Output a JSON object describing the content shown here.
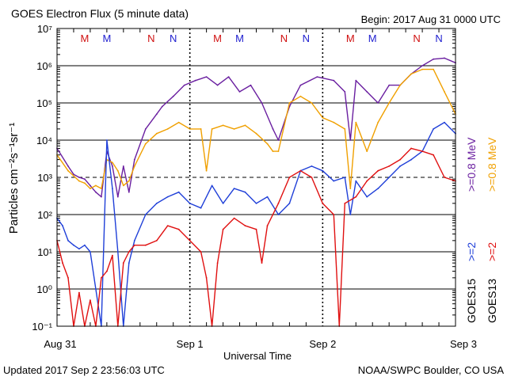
{
  "header": {
    "title": "GOES Electron Flux (5 minute data)",
    "begin": "Begin: 2017 Aug 31 0000 UTC"
  },
  "footer": {
    "updated": "Updated 2017 Sep  2 23:56:03 UTC",
    "credit": "NOAA/SWPC Boulder, CO USA"
  },
  "colors": {
    "goes15_2mev": "#1f3fd8",
    "goes13_2mev": "#e01010",
    "goes15_08mev": "#6a1fa0",
    "goes13_08mev": "#f0a000",
    "m_marker": "#d01010",
    "n_marker": "#2020d0"
  },
  "chart_data": {
    "type": "line",
    "title": "GOES Electron Flux (5 minute data)",
    "xlabel": "Universal Time",
    "ylabel": "Particles cm⁻²s⁻¹sr⁻¹",
    "y_scale": "log",
    "ylim": [
      0.1,
      10000000
    ],
    "y_ticks": [
      "10⁻¹",
      "10⁰",
      "10¹",
      "10²",
      "10³",
      "10⁴",
      "10⁵",
      "10⁶",
      "10⁷"
    ],
    "x_ticks": [
      "Aug 31",
      "Sep 1",
      "Sep 2",
      "Sep 3"
    ],
    "xlim": [
      "2017-08-31 00:00",
      "2017-09-03 00:00"
    ],
    "threshold_line": 1000,
    "marker_labels": [
      {
        "t": "2017-08-31 05:00",
        "label": "M",
        "color": "#d01010"
      },
      {
        "t": "2017-08-31 09:00",
        "label": "M",
        "color": "#2020d0"
      },
      {
        "t": "2017-08-31 17:00",
        "label": "N",
        "color": "#d01010"
      },
      {
        "t": "2017-08-31 21:00",
        "label": "N",
        "color": "#2020d0"
      },
      {
        "t": "2017-09-01 05:00",
        "label": "M",
        "color": "#d01010"
      },
      {
        "t": "2017-09-01 09:00",
        "label": "M",
        "color": "#2020d0"
      },
      {
        "t": "2017-09-01 17:00",
        "label": "N",
        "color": "#d01010"
      },
      {
        "t": "2017-09-01 21:00",
        "label": "N",
        "color": "#2020d0"
      },
      {
        "t": "2017-09-02 05:00",
        "label": "M",
        "color": "#d01010"
      },
      {
        "t": "2017-09-02 09:00",
        "label": "M",
        "color": "#2020d0"
      },
      {
        "t": "2017-09-02 17:00",
        "label": "N",
        "color": "#d01010"
      },
      {
        "t": "2017-09-02 21:00",
        "label": "N",
        "color": "#2020d0"
      }
    ],
    "legend": [
      {
        "satellite": "GOES15",
        "label": ">=2",
        "label2": ">=0.8 MeV",
        "color2mev": "#1f3fd8",
        "color08": "#6a1fa0"
      },
      {
        "satellite": "GOES13",
        "label": ">=2",
        "label2": ">=0.8 MeV",
        "color2mev": "#e01010",
        "color08": "#f0a000"
      }
    ],
    "series": [
      {
        "name": "GOES15 >=0.8 MeV",
        "color": "#6a1fa0",
        "points": [
          [
            "2017-08-31 00:00",
            6000
          ],
          [
            "2017-08-31 02:00",
            2000
          ],
          [
            "2017-08-31 03:00",
            1200
          ],
          [
            "2017-08-31 04:00",
            1000
          ],
          [
            "2017-08-31 05:00",
            900
          ],
          [
            "2017-08-31 06:00",
            600
          ],
          [
            "2017-08-31 07:00",
            400
          ],
          [
            "2017-08-31 08:00",
            300
          ],
          [
            "2017-08-31 09:00",
            5000
          ],
          [
            "2017-08-31 10:00",
            2000
          ],
          [
            "2017-08-31 11:00",
            300
          ],
          [
            "2017-08-31 12:00",
            2000
          ],
          [
            "2017-08-31 13:00",
            400
          ],
          [
            "2017-08-31 14:00",
            3000
          ],
          [
            "2017-08-31 16:00",
            20000
          ],
          [
            "2017-08-31 18:00",
            50000
          ],
          [
            "2017-08-31 19:00",
            80000
          ],
          [
            "2017-08-31 21:00",
            150000
          ],
          [
            "2017-08-31 23:00",
            300000
          ],
          [
            "2017-09-01 01:00",
            400000
          ],
          [
            "2017-09-01 03:00",
            500000
          ],
          [
            "2017-09-01 05:00",
            300000
          ],
          [
            "2017-09-01 07:00",
            500000
          ],
          [
            "2017-09-01 09:00",
            200000
          ],
          [
            "2017-09-01 11:00",
            300000
          ],
          [
            "2017-09-01 13:00",
            100000
          ],
          [
            "2017-09-01 15:00",
            20000
          ],
          [
            "2017-09-01 16:00",
            10000
          ],
          [
            "2017-09-01 18:00",
            80000
          ],
          [
            "2017-09-01 20:00",
            300000
          ],
          [
            "2017-09-01 23:00",
            500000
          ],
          [
            "2017-09-02 02:00",
            400000
          ],
          [
            "2017-09-02 04:00",
            200000
          ],
          [
            "2017-09-02 05:00",
            10000
          ],
          [
            "2017-09-02 06:00",
            400000
          ],
          [
            "2017-09-02 08:00",
            200000
          ],
          [
            "2017-09-02 10:00",
            100000
          ],
          [
            "2017-09-02 12:00",
            300000
          ],
          [
            "2017-09-02 14:00",
            300000
          ],
          [
            "2017-09-02 16:00",
            600000
          ],
          [
            "2017-09-02 18:00",
            1000000
          ],
          [
            "2017-09-02 20:00",
            1500000
          ],
          [
            "2017-09-02 22:00",
            1600000
          ],
          [
            "2017-09-03 00:00",
            1200000
          ]
        ]
      },
      {
        "name": "GOES13 >=0.8 MeV",
        "color": "#f0a000",
        "points": [
          [
            "2017-08-31 00:00",
            4000
          ],
          [
            "2017-08-31 02:00",
            1500
          ],
          [
            "2017-08-31 04:00",
            800
          ],
          [
            "2017-08-31 05:00",
            700
          ],
          [
            "2017-08-31 06:00",
            500
          ],
          [
            "2017-08-31 07:00",
            600
          ],
          [
            "2017-08-31 08:00",
            500
          ],
          [
            "2017-08-31 09:00",
            3000
          ],
          [
            "2017-08-31 10:00",
            2500
          ],
          [
            "2017-08-31 11:00",
            1500
          ],
          [
            "2017-08-31 12:00",
            600
          ],
          [
            "2017-08-31 13:00",
            800
          ],
          [
            "2017-08-31 14:00",
            2000
          ],
          [
            "2017-08-31 16:00",
            8000
          ],
          [
            "2017-08-31 18:00",
            15000
          ],
          [
            "2017-08-31 20:00",
            20000
          ],
          [
            "2017-08-31 22:00",
            30000
          ],
          [
            "2017-09-01 00:00",
            20000
          ],
          [
            "2017-09-01 02:00",
            20000
          ],
          [
            "2017-09-01 03:00",
            1500
          ],
          [
            "2017-09-01 04:00",
            20000
          ],
          [
            "2017-09-01 06:00",
            25000
          ],
          [
            "2017-09-01 08:00",
            20000
          ],
          [
            "2017-09-01 10:00",
            25000
          ],
          [
            "2017-09-01 12:00",
            15000
          ],
          [
            "2017-09-01 14:00",
            8000
          ],
          [
            "2017-09-01 15:00",
            5000
          ],
          [
            "2017-09-01 16:00",
            5000
          ],
          [
            "2017-09-01 18:00",
            100000
          ],
          [
            "2017-09-01 20:00",
            150000
          ],
          [
            "2017-09-01 22:00",
            100000
          ],
          [
            "2017-09-02 00:00",
            40000
          ],
          [
            "2017-09-02 02:00",
            30000
          ],
          [
            "2017-09-02 04:00",
            20000
          ],
          [
            "2017-09-02 05:00",
            500
          ],
          [
            "2017-09-02 06:00",
            30000
          ],
          [
            "2017-09-02 08:00",
            5000
          ],
          [
            "2017-09-02 10:00",
            30000
          ],
          [
            "2017-09-02 12:00",
            100000
          ],
          [
            "2017-09-02 14:00",
            300000
          ],
          [
            "2017-09-02 16:00",
            600000
          ],
          [
            "2017-09-02 18:00",
            800000
          ],
          [
            "2017-09-02 20:00",
            800000
          ],
          [
            "2017-09-02 22:00",
            200000
          ],
          [
            "2017-09-03 00:00",
            50000
          ]
        ]
      },
      {
        "name": "GOES15 >=2 MeV",
        "color": "#1f3fd8",
        "points": [
          [
            "2017-08-31 00:00",
            80
          ],
          [
            "2017-08-31 01:00",
            50
          ],
          [
            "2017-08-31 02:00",
            20
          ],
          [
            "2017-08-31 03:00",
            15
          ],
          [
            "2017-08-31 04:00",
            12
          ],
          [
            "2017-08-31 05:00",
            15
          ],
          [
            "2017-08-31 06:00",
            10
          ],
          [
            "2017-08-31 07:00",
            1
          ],
          [
            "2017-08-31 08:00",
            0.1
          ],
          [
            "2017-08-31 09:00",
            10000
          ],
          [
            "2017-08-31 10:00",
            500
          ],
          [
            "2017-08-31 11:00",
            10
          ],
          [
            "2017-08-31 12:00",
            0.1
          ],
          [
            "2017-08-31 13:00",
            5
          ],
          [
            "2017-08-31 14:00",
            20
          ],
          [
            "2017-08-31 16:00",
            100
          ],
          [
            "2017-08-31 18:00",
            200
          ],
          [
            "2017-08-31 20:00",
            300
          ],
          [
            "2017-08-31 22:00",
            400
          ],
          [
            "2017-09-01 00:00",
            200
          ],
          [
            "2017-09-01 02:00",
            150
          ],
          [
            "2017-09-01 04:00",
            600
          ],
          [
            "2017-09-01 06:00",
            200
          ],
          [
            "2017-09-01 08:00",
            500
          ],
          [
            "2017-09-01 10:00",
            400
          ],
          [
            "2017-09-01 12:00",
            200
          ],
          [
            "2017-09-01 14:00",
            300
          ],
          [
            "2017-09-01 16:00",
            100
          ],
          [
            "2017-09-01 18:00",
            200
          ],
          [
            "2017-09-01 20:00",
            1500
          ],
          [
            "2017-09-01 22:00",
            2000
          ],
          [
            "2017-09-02 00:00",
            1500
          ],
          [
            "2017-09-02 02:00",
            800
          ],
          [
            "2017-09-02 04:00",
            1000
          ],
          [
            "2017-09-02 05:00",
            100
          ],
          [
            "2017-09-02 06:00",
            800
          ],
          [
            "2017-09-02 08:00",
            300
          ],
          [
            "2017-09-02 10:00",
            500
          ],
          [
            "2017-09-02 12:00",
            1000
          ],
          [
            "2017-09-02 14:00",
            2000
          ],
          [
            "2017-09-02 16:00",
            3000
          ],
          [
            "2017-09-02 18:00",
            5000
          ],
          [
            "2017-09-02 20:00",
            20000
          ],
          [
            "2017-09-02 22:00",
            30000
          ],
          [
            "2017-09-03 00:00",
            15000
          ]
        ]
      },
      {
        "name": "GOES13 >=2 MeV",
        "color": "#e01010",
        "points": [
          [
            "2017-08-31 00:00",
            20
          ],
          [
            "2017-08-31 01:00",
            5
          ],
          [
            "2017-08-31 02:00",
            2
          ],
          [
            "2017-08-31 03:00",
            0.1
          ],
          [
            "2017-08-31 04:00",
            0.8
          ],
          [
            "2017-08-31 05:00",
            0.1
          ],
          [
            "2017-08-31 06:00",
            0.5
          ],
          [
            "2017-08-31 07:00",
            0.1
          ],
          [
            "2017-08-31 08:00",
            2
          ],
          [
            "2017-08-31 09:00",
            3
          ],
          [
            "2017-08-31 10:00",
            8
          ],
          [
            "2017-08-31 11:00",
            0.1
          ],
          [
            "2017-08-31 12:00",
            5
          ],
          [
            "2017-08-31 13:00",
            10
          ],
          [
            "2017-08-31 14:00",
            15
          ],
          [
            "2017-08-31 16:00",
            15
          ],
          [
            "2017-08-31 18:00",
            20
          ],
          [
            "2017-08-31 20:00",
            50
          ],
          [
            "2017-08-31 22:00",
            40
          ],
          [
            "2017-09-01 00:00",
            20
          ],
          [
            "2017-09-01 02:00",
            10
          ],
          [
            "2017-09-01 03:00",
            2
          ],
          [
            "2017-09-01 04:00",
            0.1
          ],
          [
            "2017-09-01 05:00",
            5
          ],
          [
            "2017-09-01 06:00",
            40
          ],
          [
            "2017-09-01 08:00",
            80
          ],
          [
            "2017-09-01 10:00",
            50
          ],
          [
            "2017-09-01 12:00",
            40
          ],
          [
            "2017-09-01 13:00",
            5
          ],
          [
            "2017-09-01 14:00",
            50
          ],
          [
            "2017-09-01 16:00",
            200
          ],
          [
            "2017-09-01 18:00",
            1000
          ],
          [
            "2017-09-01 20:00",
            1500
          ],
          [
            "2017-09-01 22:00",
            1000
          ],
          [
            "2017-09-02 00:00",
            200
          ],
          [
            "2017-09-02 02:00",
            100
          ],
          [
            "2017-09-02 03:00",
            0.1
          ],
          [
            "2017-09-02 04:00",
            200
          ],
          [
            "2017-09-02 06:00",
            300
          ],
          [
            "2017-09-02 08:00",
            800
          ],
          [
            "2017-09-02 10:00",
            1500
          ],
          [
            "2017-09-02 12:00",
            2000
          ],
          [
            "2017-09-02 14:00",
            3000
          ],
          [
            "2017-09-02 16:00",
            6000
          ],
          [
            "2017-09-02 18:00",
            5000
          ],
          [
            "2017-09-02 20:00",
            4000
          ],
          [
            "2017-09-02 22:00",
            1000
          ],
          [
            "2017-09-03 00:00",
            800
          ]
        ]
      }
    ]
  }
}
